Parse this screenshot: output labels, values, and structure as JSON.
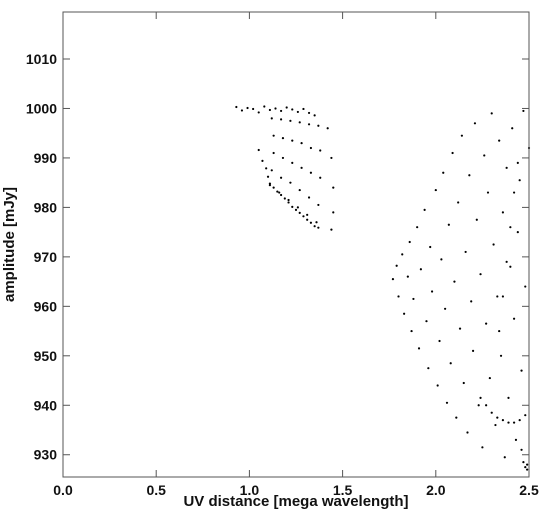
{
  "chart_data": {
    "type": "scatter",
    "title": "",
    "xlabel": "UV distance [mega wavelength]",
    "ylabel": "amplitude [mJy]",
    "xlim": [
      0.0,
      2.5
    ],
    "ylim": [
      925.5,
      1019.5
    ],
    "xticks": [
      {
        "value": 0.0,
        "label": "0.0"
      },
      {
        "value": 0.5,
        "label": "0.5"
      },
      {
        "value": 1.0,
        "label": "1.0"
      },
      {
        "value": 1.5,
        "label": "1.5"
      },
      {
        "value": 2.0,
        "label": "2.0"
      },
      {
        "value": 2.5,
        "label": "2.5"
      }
    ],
    "yticks": [
      {
        "value": 930,
        "label": "930"
      },
      {
        "value": 940,
        "label": "940"
      },
      {
        "value": 950,
        "label": "950"
      },
      {
        "value": 960,
        "label": "960"
      },
      {
        "value": 970,
        "label": "970"
      },
      {
        "value": 980,
        "label": "980"
      },
      {
        "value": 990,
        "label": "990"
      },
      {
        "value": 1000,
        "label": "1000"
      },
      {
        "value": 1010,
        "label": "1010"
      }
    ],
    "grid": false,
    "legend": "none",
    "marker_color": "#000000",
    "series": [
      {
        "points": [
          [
            0.93,
            1000.3
          ],
          [
            0.96,
            999.6
          ],
          [
            0.99,
            1000.1
          ],
          [
            1.02,
            999.9
          ],
          [
            1.05,
            999.2
          ],
          [
            1.08,
            1000.4
          ],
          [
            1.11,
            999.7
          ],
          [
            1.14,
            1000.0
          ],
          [
            1.17,
            999.5
          ],
          [
            1.2,
            1000.2
          ],
          [
            1.23,
            999.8
          ],
          [
            1.26,
            999.3
          ],
          [
            1.29,
            999.9
          ],
          [
            1.32,
            999.1
          ],
          [
            1.35,
            998.6
          ],
          [
            1.05,
            991.6
          ],
          [
            1.07,
            989.4
          ],
          [
            1.09,
            987.9
          ],
          [
            1.1,
            986.2
          ],
          [
            1.11,
            984.8
          ],
          [
            1.13,
            984.0
          ],
          [
            1.15,
            983.2
          ],
          [
            1.17,
            982.5
          ],
          [
            1.19,
            981.8
          ],
          [
            1.21,
            981.0
          ],
          [
            1.23,
            980.1
          ],
          [
            1.25,
            979.5
          ],
          [
            1.27,
            978.9
          ],
          [
            1.29,
            978.2
          ],
          [
            1.31,
            977.5
          ],
          [
            1.33,
            976.9
          ],
          [
            1.35,
            976.2
          ],
          [
            1.37,
            975.9
          ],
          [
            1.12,
            998.0
          ],
          [
            1.13,
            994.5
          ],
          [
            1.13,
            991.0
          ],
          [
            1.12,
            987.5
          ],
          [
            1.11,
            984.5
          ],
          [
            1.17,
            997.8
          ],
          [
            1.18,
            994.0
          ],
          [
            1.18,
            990.0
          ],
          [
            1.17,
            986.0
          ],
          [
            1.16,
            983.0
          ],
          [
            1.22,
            997.5
          ],
          [
            1.23,
            993.5
          ],
          [
            1.23,
            989.0
          ],
          [
            1.22,
            985.0
          ],
          [
            1.21,
            981.5
          ],
          [
            1.27,
            997.2
          ],
          [
            1.28,
            993.0
          ],
          [
            1.28,
            988.0
          ],
          [
            1.27,
            983.5
          ],
          [
            1.26,
            980.0
          ],
          [
            1.32,
            996.8
          ],
          [
            1.33,
            992.0
          ],
          [
            1.33,
            987.0
          ],
          [
            1.32,
            982.0
          ],
          [
            1.31,
            978.5
          ],
          [
            1.37,
            996.5
          ],
          [
            1.38,
            991.5
          ],
          [
            1.38,
            986.0
          ],
          [
            1.37,
            980.5
          ],
          [
            1.36,
            977.0
          ],
          [
            1.42,
            996.0
          ],
          [
            1.44,
            990.0
          ],
          [
            1.45,
            984.0
          ],
          [
            1.45,
            979.0
          ],
          [
            1.44,
            975.5
          ],
          [
            1.77,
            965.5
          ],
          [
            1.79,
            968.2
          ],
          [
            1.8,
            962.0
          ],
          [
            1.82,
            970.5
          ],
          [
            1.83,
            958.5
          ],
          [
            1.85,
            966.0
          ],
          [
            1.86,
            973.0
          ],
          [
            1.87,
            955.0
          ],
          [
            1.88,
            961.5
          ],
          [
            1.9,
            976.0
          ],
          [
            1.91,
            951.5
          ],
          [
            1.92,
            967.5
          ],
          [
            1.94,
            979.5
          ],
          [
            1.95,
            957.0
          ],
          [
            1.96,
            947.5
          ],
          [
            1.97,
            972.0
          ],
          [
            1.98,
            963.0
          ],
          [
            2.0,
            983.5
          ],
          [
            2.01,
            944.0
          ],
          [
            2.02,
            953.0
          ],
          [
            2.03,
            969.5
          ],
          [
            2.04,
            987.0
          ],
          [
            2.05,
            959.5
          ],
          [
            2.06,
            940.5
          ],
          [
            2.07,
            976.5
          ],
          [
            2.08,
            948.5
          ],
          [
            2.09,
            991.0
          ],
          [
            2.1,
            965.0
          ],
          [
            2.11,
            937.5
          ],
          [
            2.12,
            981.0
          ],
          [
            2.13,
            955.5
          ],
          [
            2.14,
            994.5
          ],
          [
            2.15,
            944.5
          ],
          [
            2.16,
            971.0
          ],
          [
            2.17,
            934.5
          ],
          [
            2.18,
            986.5
          ],
          [
            2.19,
            961.0
          ],
          [
            2.2,
            951.0
          ],
          [
            2.21,
            997.0
          ],
          [
            2.22,
            977.5
          ],
          [
            2.23,
            940.0
          ],
          [
            2.24,
            966.5
          ],
          [
            2.25,
            931.5
          ],
          [
            2.26,
            990.5
          ],
          [
            2.27,
            956.5
          ],
          [
            2.28,
            983.0
          ],
          [
            2.29,
            945.5
          ],
          [
            2.3,
            999.0
          ],
          [
            2.31,
            972.5
          ],
          [
            2.32,
            936.0
          ],
          [
            2.33,
            962.0
          ],
          [
            2.34,
            993.5
          ],
          [
            2.35,
            950.0
          ],
          [
            2.36,
            979.0
          ],
          [
            2.37,
            929.5
          ],
          [
            2.38,
            988.0
          ],
          [
            2.39,
            941.5
          ],
          [
            2.4,
            968.0
          ],
          [
            2.41,
            996.0
          ],
          [
            2.42,
            957.5
          ],
          [
            2.43,
            933.0
          ],
          [
            2.44,
            975.0
          ],
          [
            2.45,
            985.5
          ],
          [
            2.46,
            947.0
          ],
          [
            2.47,
            999.5
          ],
          [
            2.48,
            964.0
          ],
          [
            2.49,
            928.0
          ],
          [
            2.5,
            992.0
          ],
          [
            2.24,
            941.5
          ],
          [
            2.27,
            940.0
          ],
          [
            2.3,
            938.5
          ],
          [
            2.33,
            937.5
          ],
          [
            2.36,
            937.0
          ],
          [
            2.39,
            936.5
          ],
          [
            2.42,
            936.5
          ],
          [
            2.45,
            937.0
          ],
          [
            2.48,
            938.0
          ],
          [
            2.34,
            955.0
          ],
          [
            2.36,
            962.0
          ],
          [
            2.38,
            969.0
          ],
          [
            2.4,
            976.0
          ],
          [
            2.42,
            983.0
          ],
          [
            2.44,
            989.0
          ],
          [
            2.46,
            931.0
          ],
          [
            2.47,
            928.5
          ],
          [
            2.48,
            927.5
          ],
          [
            2.49,
            927.0
          ]
        ]
      }
    ]
  }
}
